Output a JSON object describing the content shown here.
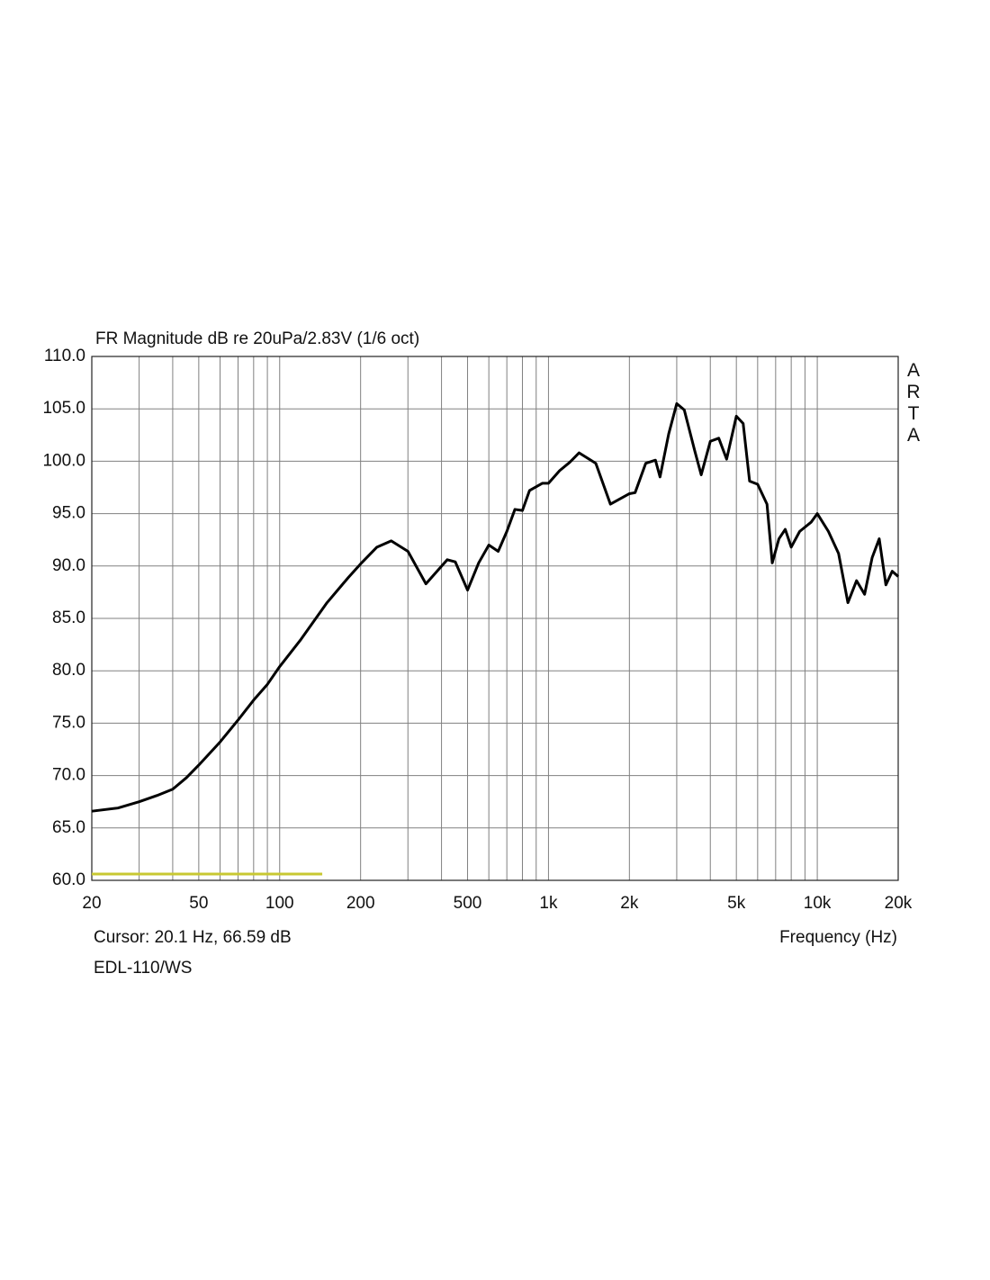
{
  "chart_data": {
    "type": "line",
    "title": "FR Magnitude dB re 20uPa/2.83V (1/6 oct)",
    "watermark": "ARTA",
    "cursor_text": "Cursor: 20.1 Hz, 66.59 dB",
    "x_label": "Frequency (Hz)",
    "device_label": "EDL-110/WS",
    "log_x": true,
    "grid": true,
    "xlim": [
      20,
      20000
    ],
    "ylim": [
      60,
      110
    ],
    "xticks": [
      20,
      50,
      100,
      200,
      500,
      {
        "value": 1000,
        "label": "1k"
      },
      {
        "value": 2000,
        "label": "2k"
      },
      {
        "value": 5000,
        "label": "5k"
      },
      {
        "value": 10000,
        "label": "10k"
      },
      {
        "value": 20000,
        "label": "20k"
      }
    ],
    "xminorticks": [
      30,
      40,
      60,
      70,
      80,
      90,
      300,
      400,
      600,
      700,
      800,
      900,
      3000,
      4000,
      6000,
      7000,
      8000,
      9000
    ],
    "yticks": [
      {
        "value": 60,
        "label": "60.0"
      },
      {
        "value": 65,
        "label": "65.0"
      },
      {
        "value": 70,
        "label": "70.0"
      },
      {
        "value": 75,
        "label": "75.0"
      },
      {
        "value": 80,
        "label": "80.0"
      },
      {
        "value": 85,
        "label": "85.0"
      },
      {
        "value": 90,
        "label": "90.0"
      },
      {
        "value": 95,
        "label": "95.0"
      },
      {
        "value": 100,
        "label": "100.0"
      },
      {
        "value": 105,
        "label": "105.0"
      },
      {
        "value": 110,
        "label": "110.0"
      }
    ],
    "series": [
      {
        "color": "#000000",
        "x": [
          20,
          25,
          30,
          35,
          40,
          45,
          50,
          60,
          70,
          80,
          90,
          100,
          120,
          150,
          180,
          200,
          230,
          260,
          300,
          350,
          420,
          450,
          500,
          550,
          600,
          650,
          700,
          750,
          800,
          850,
          950,
          1000,
          1100,
          1200,
          1300,
          1500,
          1700,
          2000,
          2100,
          2300,
          2500,
          2600,
          2800,
          3000,
          3200,
          3500,
          3700,
          4000,
          4300,
          4600,
          5000,
          5300,
          5600,
          6000,
          6500,
          6800,
          7200,
          7600,
          8000,
          8600,
          9500,
          10000,
          11000,
          12000,
          13000,
          14000,
          15000,
          16000,
          17000,
          18000,
          19000,
          20000
        ],
        "values": [
          66.6,
          66.9,
          67.5,
          68.1,
          68.7,
          69.8,
          71.0,
          73.2,
          75.3,
          77.2,
          78.7,
          80.4,
          83.0,
          86.5,
          88.9,
          90.2,
          91.8,
          92.4,
          91.4,
          88.3,
          90.6,
          90.4,
          87.7,
          90.3,
          92.0,
          91.4,
          93.3,
          95.4,
          95.3,
          97.2,
          97.9,
          97.9,
          99.1,
          99.9,
          100.8,
          99.8,
          95.9,
          96.9,
          97.0,
          99.8,
          100.1,
          98.5,
          102.6,
          105.5,
          104.9,
          101.0,
          98.7,
          101.9,
          102.2,
          100.2,
          104.3,
          103.6,
          98.1,
          97.8,
          95.9,
          90.3,
          92.6,
          93.5,
          91.8,
          93.3,
          94.2,
          95.0,
          93.3,
          91.2,
          86.5,
          88.6,
          87.3,
          90.8,
          92.6,
          88.2,
          89.5,
          89.0
        ]
      },
      {
        "color": "#c8c832",
        "x": [
          20,
          144
        ],
        "values": [
          60.6,
          60.6
        ]
      }
    ]
  }
}
